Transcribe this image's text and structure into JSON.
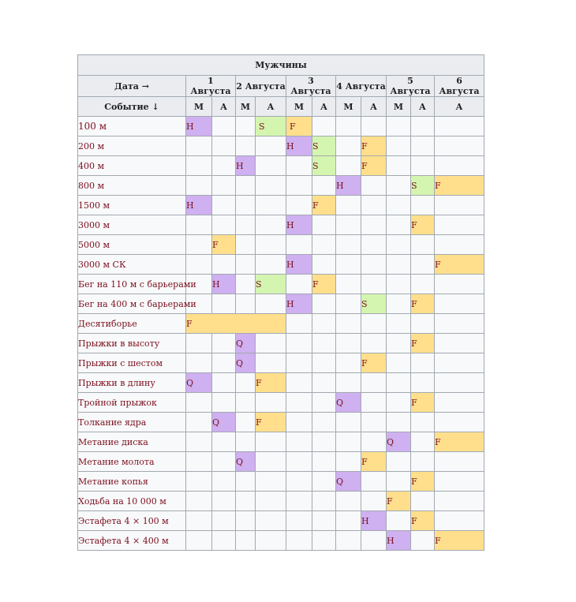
{
  "title": "Мужчины",
  "date_header": "Дата →",
  "event_header": "Событие ↓",
  "dates": [
    "1 Августа",
    "2 Августа",
    "3 Августа",
    "4 Августа",
    "5 Августа",
    "6 Августа"
  ],
  "sessions": [
    "М",
    "А",
    "М",
    "А",
    "М",
    "А",
    "М",
    "А",
    "М",
    "А",
    "А"
  ],
  "legend_colors": {
    "H": "#cfb0f0",
    "Q": "#cfb0f0",
    "S": "#d4f5b0",
    "F": "#ffdf8c"
  },
  "events": [
    {
      "name": "100 м",
      "big": true,
      "cells": [
        [
          "H",
          1
        ],
        [
          "",
          1
        ],
        [
          "",
          1
        ],
        [
          "S",
          1,
          "pad"
        ],
        [
          "F",
          1,
          "pad"
        ],
        [
          "",
          1
        ],
        [
          "",
          1
        ],
        [
          "",
          1
        ],
        [
          "",
          1
        ],
        [
          "",
          1
        ],
        [
          "",
          1
        ]
      ]
    },
    {
      "name": "200 м",
      "cells": [
        [
          "",
          1
        ],
        [
          "",
          1
        ],
        [
          "",
          1
        ],
        [
          "",
          1
        ],
        [
          "H",
          1
        ],
        [
          "S",
          1
        ],
        [
          "",
          1
        ],
        [
          "F",
          1
        ],
        [
          "",
          1
        ],
        [
          "",
          1
        ],
        [
          "",
          1
        ]
      ]
    },
    {
      "name": "400 м",
      "cells": [
        [
          "",
          1
        ],
        [
          "",
          1
        ],
        [
          "H",
          1
        ],
        [
          "",
          1
        ],
        [
          "",
          1
        ],
        [
          "S",
          1
        ],
        [
          "",
          1
        ],
        [
          "F",
          1
        ],
        [
          "",
          1
        ],
        [
          "",
          1
        ],
        [
          "",
          1
        ]
      ]
    },
    {
      "name": "800 м",
      "cells": [
        [
          "",
          1
        ],
        [
          "",
          1
        ],
        [
          "",
          1
        ],
        [
          "",
          1
        ],
        [
          "",
          1
        ],
        [
          "",
          1
        ],
        [
          "H",
          1
        ],
        [
          "",
          1
        ],
        [
          "",
          1
        ],
        [
          "S",
          1
        ],
        [
          "F",
          1
        ]
      ]
    },
    {
      "name": "1500 м",
      "cells": [
        [
          "H",
          1
        ],
        [
          "",
          1
        ],
        [
          "",
          1
        ],
        [
          "",
          1
        ],
        [
          "",
          1
        ],
        [
          "F",
          1
        ],
        [
          "",
          1
        ],
        [
          "",
          1
        ],
        [
          "",
          1
        ],
        [
          "",
          1
        ],
        [
          "",
          1
        ]
      ]
    },
    {
      "name": "3000 м",
      "cells": [
        [
          "",
          1
        ],
        [
          "",
          1
        ],
        [
          "",
          1
        ],
        [
          "",
          1
        ],
        [
          "H",
          1
        ],
        [
          "",
          1
        ],
        [
          "",
          1
        ],
        [
          "",
          1
        ],
        [
          "",
          1
        ],
        [
          "F",
          1
        ],
        [
          "",
          1
        ]
      ]
    },
    {
      "name": "5000 м",
      "cells": [
        [
          "",
          1
        ],
        [
          "F",
          1
        ],
        [
          "",
          1
        ],
        [
          "",
          1
        ],
        [
          "",
          1
        ],
        [
          "",
          1
        ],
        [
          "",
          1
        ],
        [
          "",
          1
        ],
        [
          "",
          1
        ],
        [
          "",
          1
        ],
        [
          "",
          1
        ]
      ]
    },
    {
      "name": "3000 м СК",
      "cells": [
        [
          "",
          1
        ],
        [
          "",
          1
        ],
        [
          "",
          1
        ],
        [
          "",
          1
        ],
        [
          "H",
          1
        ],
        [
          "",
          1
        ],
        [
          "",
          1
        ],
        [
          "",
          1
        ],
        [
          "",
          1
        ],
        [
          "",
          1
        ],
        [
          "F",
          1
        ]
      ]
    },
    {
      "name": "Бег на 110 м с барьерами",
      "cells": [
        [
          "",
          1
        ],
        [
          "H",
          1
        ],
        [
          "",
          1
        ],
        [
          "S",
          1
        ],
        [
          "",
          1
        ],
        [
          "F",
          1
        ],
        [
          "",
          1
        ],
        [
          "",
          1
        ],
        [
          "",
          1
        ],
        [
          "",
          1
        ],
        [
          "",
          1
        ]
      ]
    },
    {
      "name": "Бег на 400 м с барьерами",
      "cells": [
        [
          "",
          1
        ],
        [
          "",
          1
        ],
        [
          "",
          1
        ],
        [
          "",
          1
        ],
        [
          "H",
          1
        ],
        [
          "",
          1
        ],
        [
          "",
          1
        ],
        [
          "S",
          1
        ],
        [
          "",
          1
        ],
        [
          "F",
          1
        ],
        [
          "",
          1
        ]
      ]
    },
    {
      "name": "Десятиборье",
      "cells": [
        [
          "F",
          4
        ],
        [
          "",
          1
        ],
        [
          "",
          1
        ],
        [
          "",
          1
        ],
        [
          "",
          1
        ],
        [
          "",
          1
        ],
        [
          "",
          1
        ],
        [
          "",
          1
        ]
      ]
    },
    {
      "name": "Прыжки в высоту",
      "cells": [
        [
          "",
          1
        ],
        [
          "",
          1
        ],
        [
          "Q",
          1
        ],
        [
          "",
          1
        ],
        [
          "",
          1
        ],
        [
          "",
          1
        ],
        [
          "",
          1
        ],
        [
          "",
          1
        ],
        [
          "",
          1
        ],
        [
          "F",
          1
        ],
        [
          "",
          1
        ]
      ]
    },
    {
      "name": "Прыжки с шестом",
      "cells": [
        [
          "",
          1
        ],
        [
          "",
          1
        ],
        [
          "Q",
          1
        ],
        [
          "",
          1
        ],
        [
          "",
          1
        ],
        [
          "",
          1
        ],
        [
          "",
          1
        ],
        [
          "F",
          1
        ],
        [
          "",
          1
        ],
        [
          "",
          1
        ],
        [
          "",
          1
        ]
      ]
    },
    {
      "name": "Прыжки в длину",
      "cells": [
        [
          "Q",
          1
        ],
        [
          "",
          1
        ],
        [
          "",
          1
        ],
        [
          "F",
          1
        ],
        [
          "",
          1
        ],
        [
          "",
          1
        ],
        [
          "",
          1
        ],
        [
          "",
          1
        ],
        [
          "",
          1
        ],
        [
          "",
          1
        ],
        [
          "",
          1
        ]
      ]
    },
    {
      "name": "Тройной прыжок",
      "cells": [
        [
          "",
          1
        ],
        [
          "",
          1
        ],
        [
          "",
          1
        ],
        [
          "",
          1
        ],
        [
          "",
          1
        ],
        [
          "",
          1
        ],
        [
          "Q",
          1
        ],
        [
          "",
          1
        ],
        [
          "",
          1
        ],
        [
          "F",
          1
        ],
        [
          "",
          1
        ]
      ]
    },
    {
      "name": "Толкание ядра",
      "cells": [
        [
          "",
          1
        ],
        [
          "Q",
          1
        ],
        [
          "",
          1
        ],
        [
          "F",
          1
        ],
        [
          "",
          1
        ],
        [
          "",
          1
        ],
        [
          "",
          1
        ],
        [
          "",
          1
        ],
        [
          "",
          1
        ],
        [
          "",
          1
        ],
        [
          "",
          1
        ]
      ]
    },
    {
      "name": "Метание диска",
      "cells": [
        [
          "",
          1
        ],
        [
          "",
          1
        ],
        [
          "",
          1
        ],
        [
          "",
          1
        ],
        [
          "",
          1
        ],
        [
          "",
          1
        ],
        [
          "",
          1
        ],
        [
          "",
          1
        ],
        [
          "Q",
          1
        ],
        [
          "",
          1
        ],
        [
          "F",
          1
        ]
      ]
    },
    {
      "name": "Метание молота",
      "cells": [
        [
          "",
          1
        ],
        [
          "",
          1
        ],
        [
          "Q",
          1
        ],
        [
          "",
          1
        ],
        [
          "",
          1
        ],
        [
          "",
          1
        ],
        [
          "",
          1
        ],
        [
          "F",
          1
        ],
        [
          "",
          1
        ],
        [
          "",
          1
        ],
        [
          "",
          1
        ]
      ]
    },
    {
      "name": "Метание копья",
      "cells": [
        [
          "",
          1
        ],
        [
          "",
          1
        ],
        [
          "",
          1
        ],
        [
          "",
          1
        ],
        [
          "",
          1
        ],
        [
          "",
          1
        ],
        [
          "Q",
          1
        ],
        [
          "",
          1
        ],
        [
          "",
          1
        ],
        [
          "F",
          1
        ],
        [
          "",
          1
        ]
      ]
    },
    {
      "name": "Ходьба на 10 000 м",
      "cells": [
        [
          "",
          1
        ],
        [
          "",
          1
        ],
        [
          "",
          1
        ],
        [
          "",
          1
        ],
        [
          "",
          1
        ],
        [
          "",
          1
        ],
        [
          "",
          1
        ],
        [
          "",
          1
        ],
        [
          "F",
          1
        ],
        [
          "",
          1
        ],
        [
          "",
          1
        ]
      ]
    },
    {
      "name": "Эстафета 4 × 100 м",
      "cells": [
        [
          "",
          1
        ],
        [
          "",
          1
        ],
        [
          "",
          1
        ],
        [
          "",
          1
        ],
        [
          "",
          1
        ],
        [
          "",
          1
        ],
        [
          "",
          1
        ],
        [
          "H",
          1
        ],
        [
          "",
          1
        ],
        [
          "F",
          1
        ],
        [
          "",
          1
        ]
      ]
    },
    {
      "name": "Эстафета 4 × 400 м",
      "cells": [
        [
          "",
          1
        ],
        [
          "",
          1
        ],
        [
          "",
          1
        ],
        [
          "",
          1
        ],
        [
          "",
          1
        ],
        [
          "",
          1
        ],
        [
          "",
          1
        ],
        [
          "",
          1
        ],
        [
          "H",
          1
        ],
        [
          "",
          1
        ],
        [
          "F",
          1
        ]
      ]
    }
  ]
}
